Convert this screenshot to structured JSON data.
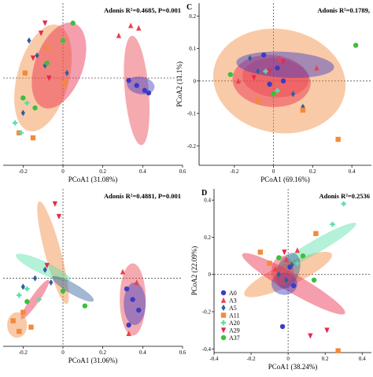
{
  "figure": {
    "colors": {
      "A0": "#3b3bc4",
      "A3": "#e8434f",
      "A5": "#2f5f9e",
      "A11": "#f28a3c",
      "A20": "#57e0a8",
      "A29": "#e8294a",
      "A37": "#3cbf3c"
    },
    "legend_entries": [
      "A0",
      "A3",
      "A5",
      "A11",
      "A20",
      "A29",
      "A37"
    ]
  },
  "chart_data": [
    {
      "type": "scatter",
      "panel_label": "",
      "title": "",
      "stat_text": "Adonis R²=0.4685, P=0.001",
      "xlabel": "PCoA1 (31.08%)",
      "ylabel": "",
      "xlim": [
        -0.3,
        0.6
      ],
      "ylim": [
        -0.35,
        0.3
      ],
      "xticks": [
        "-0.2",
        "0",
        "0.2",
        "0.4",
        "0.6"
      ],
      "yticks": [],
      "grid": false,
      "ellipses": [
        {
          "group": "A11",
          "cx": -0.1,
          "cy": 0.0,
          "rx": 0.13,
          "ry": 0.22,
          "angle": -15
        },
        {
          "group": "A29",
          "cx": -0.02,
          "cy": 0.05,
          "rx": 0.12,
          "ry": 0.18,
          "angle": -20
        },
        {
          "group": "A3",
          "cx": 0.37,
          "cy": -0.05,
          "rx": 0.06,
          "ry": 0.22,
          "angle": 5
        },
        {
          "group": "A0",
          "cx": 0.39,
          "cy": -0.03,
          "rx": 0.07,
          "ry": 0.035,
          "angle": -10
        }
      ],
      "series": [
        {
          "name": "A0",
          "x": [
            0.33,
            0.37,
            0.41,
            0.43
          ],
          "y": [
            -0.01,
            -0.03,
            -0.05,
            -0.06
          ]
        },
        {
          "name": "A3",
          "x": [
            0.28,
            0.34,
            0.38
          ],
          "y": [
            0.17,
            0.21,
            0.2
          ]
        },
        {
          "name": "A5",
          "x": [
            -0.17,
            -0.13,
            -0.2,
            -0.09,
            0.02
          ],
          "y": [
            0.15,
            0.09,
            -0.14,
            0.05,
            0.02
          ]
        },
        {
          "name": "A11",
          "x": [
            -0.19,
            -0.08,
            -0.15,
            0.01,
            -0.22
          ],
          "y": [
            0.02,
            0.12,
            -0.24,
            -0.02,
            -0.22
          ]
        },
        {
          "name": "A20",
          "x": [
            -0.24,
            -0.21,
            -0.18
          ],
          "y": [
            -0.18,
            -0.22,
            -0.1
          ]
        },
        {
          "name": "A29",
          "x": [
            -0.15,
            -0.11,
            -0.09,
            -0.07
          ],
          "y": [
            0.08,
            0.18,
            0.22,
            0.0
          ]
        },
        {
          "name": "A37",
          "x": [
            -0.2,
            -0.14,
            -0.08,
            0.0,
            0.05
          ],
          "y": [
            -0.08,
            -0.12,
            0.06,
            0.15,
            0.22
          ]
        }
      ]
    },
    {
      "type": "scatter",
      "panel_label": "C",
      "title": "",
      "stat_text": "Adonis R²=0.1789,",
      "xlabel": "PCoA1 (69.16%)",
      "ylabel": "PCoA2 (11.1%)",
      "xlim": [
        -0.38,
        0.5
      ],
      "ylim": [
        -0.26,
        0.24
      ],
      "xticks": [
        "-0.2",
        "0",
        "0.2",
        "0.4"
      ],
      "yticks": [
        "0.2",
        "0.1",
        "0",
        "-0.1",
        "-0.2"
      ],
      "grid": false,
      "ellipses": [
        {
          "group": "A11",
          "cx": 0.03,
          "cy": 0.0,
          "rx": 0.34,
          "ry": 0.16,
          "angle": -10
        },
        {
          "group": "A29",
          "cx": -0.01,
          "cy": 0.0,
          "rx": 0.2,
          "ry": 0.08,
          "angle": -5
        },
        {
          "group": "A3",
          "cx": 0.01,
          "cy": 0.01,
          "rx": 0.17,
          "ry": 0.06,
          "angle": -5
        },
        {
          "group": "A0",
          "cx": 0.06,
          "cy": 0.05,
          "rx": 0.25,
          "ry": 0.04,
          "angle": -3
        }
      ],
      "series": [
        {
          "name": "A0",
          "x": [
            -0.05,
            0.02,
            -0.02,
            0.05
          ],
          "y": [
            0.08,
            0.04,
            -0.01,
            0.0
          ]
        },
        {
          "name": "A3",
          "x": [
            -0.18,
            0.03,
            0.22
          ],
          "y": [
            0.0,
            0.07,
            0.04
          ]
        },
        {
          "name": "A5",
          "x": [
            -0.12,
            -0.08,
            0.1,
            0.15
          ],
          "y": [
            0.07,
            0.03,
            -0.04,
            -0.08
          ]
        },
        {
          "name": "A11",
          "x": [
            0.15,
            -0.08,
            0.33
          ],
          "y": [
            -0.09,
            -0.06,
            -0.18
          ]
        },
        {
          "name": "A20",
          "x": [
            -0.04,
            0.02
          ],
          "y": [
            0.03,
            -0.03
          ]
        },
        {
          "name": "A29",
          "x": [
            -0.1,
            -0.02,
            0.05
          ],
          "y": [
            0.01,
            0.03,
            0.06
          ]
        },
        {
          "name": "A37",
          "x": [
            -0.22,
            0.0,
            0.42
          ],
          "y": [
            0.02,
            -0.04,
            0.11
          ]
        }
      ]
    },
    {
      "type": "scatter",
      "panel_label": "",
      "title": "",
      "stat_text": "Adonis R²=0.4881, P=0.001",
      "xlabel": "PCoA1 (31.06%)",
      "ylabel": "",
      "xlim": [
        -0.3,
        0.6
      ],
      "ylim": [
        -0.32,
        0.42
      ],
      "xticks": [
        "-0.2",
        "0",
        "0.2",
        "0.4",
        "0.6"
      ],
      "yticks": [],
      "grid": false,
      "ellipses": [
        {
          "group": "A11",
          "cx": -0.05,
          "cy": 0.12,
          "rx": 0.04,
          "ry": 0.25,
          "angle": 15
        },
        {
          "group": "A20",
          "cx": -0.1,
          "cy": 0.05,
          "rx": 0.15,
          "ry": 0.03,
          "angle": -25
        },
        {
          "group": "A5",
          "cx": 0.05,
          "cy": -0.05,
          "rx": 0.12,
          "ry": 0.025,
          "angle": -30
        },
        {
          "group": "A29",
          "cx": -0.14,
          "cy": -0.1,
          "rx": 0.12,
          "ry": 0.02,
          "angle": 55
        },
        {
          "group": "A11",
          "cx": -0.23,
          "cy": -0.22,
          "rx": 0.05,
          "ry": 0.06,
          "angle": 0
        },
        {
          "group": "A3",
          "cx": 0.35,
          "cy": -0.1,
          "rx": 0.065,
          "ry": 0.17,
          "angle": 0
        },
        {
          "group": "A0",
          "cx": 0.36,
          "cy": -0.12,
          "rx": 0.055,
          "ry": 0.1,
          "angle": 0
        }
      ],
      "series": [
        {
          "name": "A0",
          "x": [
            0.32,
            0.35,
            0.38,
            0.33
          ],
          "y": [
            -0.05,
            -0.1,
            -0.15,
            -0.22
          ]
        },
        {
          "name": "A3",
          "x": [
            0.3,
            0.37,
            0.33
          ],
          "y": [
            0.03,
            -0.02,
            -0.26
          ]
        },
        {
          "name": "A5",
          "x": [
            -0.2,
            -0.14,
            -0.06,
            -0.09
          ],
          "y": [
            -0.04,
            0.0,
            -0.02,
            0.04
          ]
        },
        {
          "name": "A11",
          "x": [
            -0.25,
            -0.22,
            -0.2,
            -0.16
          ],
          "y": [
            -0.2,
            -0.25,
            -0.16,
            -0.23
          ]
        },
        {
          "name": "A20",
          "x": [
            -0.22,
            -0.18,
            -0.12
          ],
          "y": [
            -0.08,
            -0.05,
            -0.1
          ]
        },
        {
          "name": "A29",
          "x": [
            -0.04,
            -0.02,
            -0.08
          ],
          "y": [
            0.35,
            0.29,
            0.06
          ]
        },
        {
          "name": "A37",
          "x": [
            -0.18,
            0.0,
            0.11
          ],
          "y": [
            -0.11,
            -0.06,
            -0.13
          ]
        }
      ]
    },
    {
      "type": "scatter",
      "panel_label": "D",
      "title": "",
      "stat_text": "Adonis R²=0.2536",
      "xlabel": "PCoA1 (38.24%)",
      "ylabel": "PCoA2 (22.09%)",
      "xlim": [
        -0.4,
        0.45
      ],
      "ylim": [
        -0.42,
        0.46
      ],
      "xticks": [
        "-0.4",
        "-0.2",
        "0",
        "0.2",
        "0.4"
      ],
      "yticks": [
        "0.4",
        "0.2",
        "0",
        "-0.2",
        "-0.4"
      ],
      "grid": false,
      "ellipses": [
        {
          "group": "A11",
          "cx": 0.0,
          "cy": 0.0,
          "rx": 0.26,
          "ry": 0.06,
          "angle": 25
        },
        {
          "group": "A20",
          "cx": 0.15,
          "cy": 0.15,
          "rx": 0.25,
          "ry": 0.035,
          "angle": 30
        },
        {
          "group": "A5",
          "cx": 0.0,
          "cy": 0.02,
          "rx": 0.06,
          "ry": 0.1,
          "angle": -20
        },
        {
          "group": "A29",
          "cx": 0.03,
          "cy": -0.05,
          "rx": 0.32,
          "ry": 0.05,
          "angle": -30
        },
        {
          "group": "A0",
          "cx": -0.02,
          "cy": -0.05,
          "rx": 0.07,
          "ry": 0.06,
          "angle": 0
        },
        {
          "group": "A3",
          "cx": -0.03,
          "cy": 0.02,
          "rx": 0.06,
          "ry": 0.08,
          "angle": 0
        }
      ],
      "series": [
        {
          "name": "A0",
          "x": [
            0.03,
            0.01,
            -0.03
          ],
          "y": [
            -0.06,
            0.04,
            -0.28
          ]
        },
        {
          "name": "A3",
          "x": [
            -0.07,
            -0.01,
            0.05
          ],
          "y": [
            0.03,
            0.08,
            0.13
          ]
        },
        {
          "name": "A5",
          "x": [
            -0.05,
            -0.01,
            0.02
          ],
          "y": [
            0.0,
            -0.03,
            0.05
          ]
        },
        {
          "name": "A11",
          "x": [
            -0.15,
            -0.1,
            0.15,
            0.27
          ],
          "y": [
            0.12,
            0.06,
            0.22,
            -0.41
          ]
        },
        {
          "name": "A20",
          "x": [
            0.24,
            0.3,
            0.05
          ],
          "y": [
            0.27,
            0.38,
            0.06
          ]
        },
        {
          "name": "A29",
          "x": [
            0.12,
            0.21,
            -0.02
          ],
          "y": [
            -0.33,
            -0.3,
            0.12
          ]
        },
        {
          "name": "A37",
          "x": [
            -0.05,
            0.08,
            0.14
          ],
          "y": [
            0.09,
            0.1,
            -0.03
          ]
        }
      ]
    }
  ]
}
